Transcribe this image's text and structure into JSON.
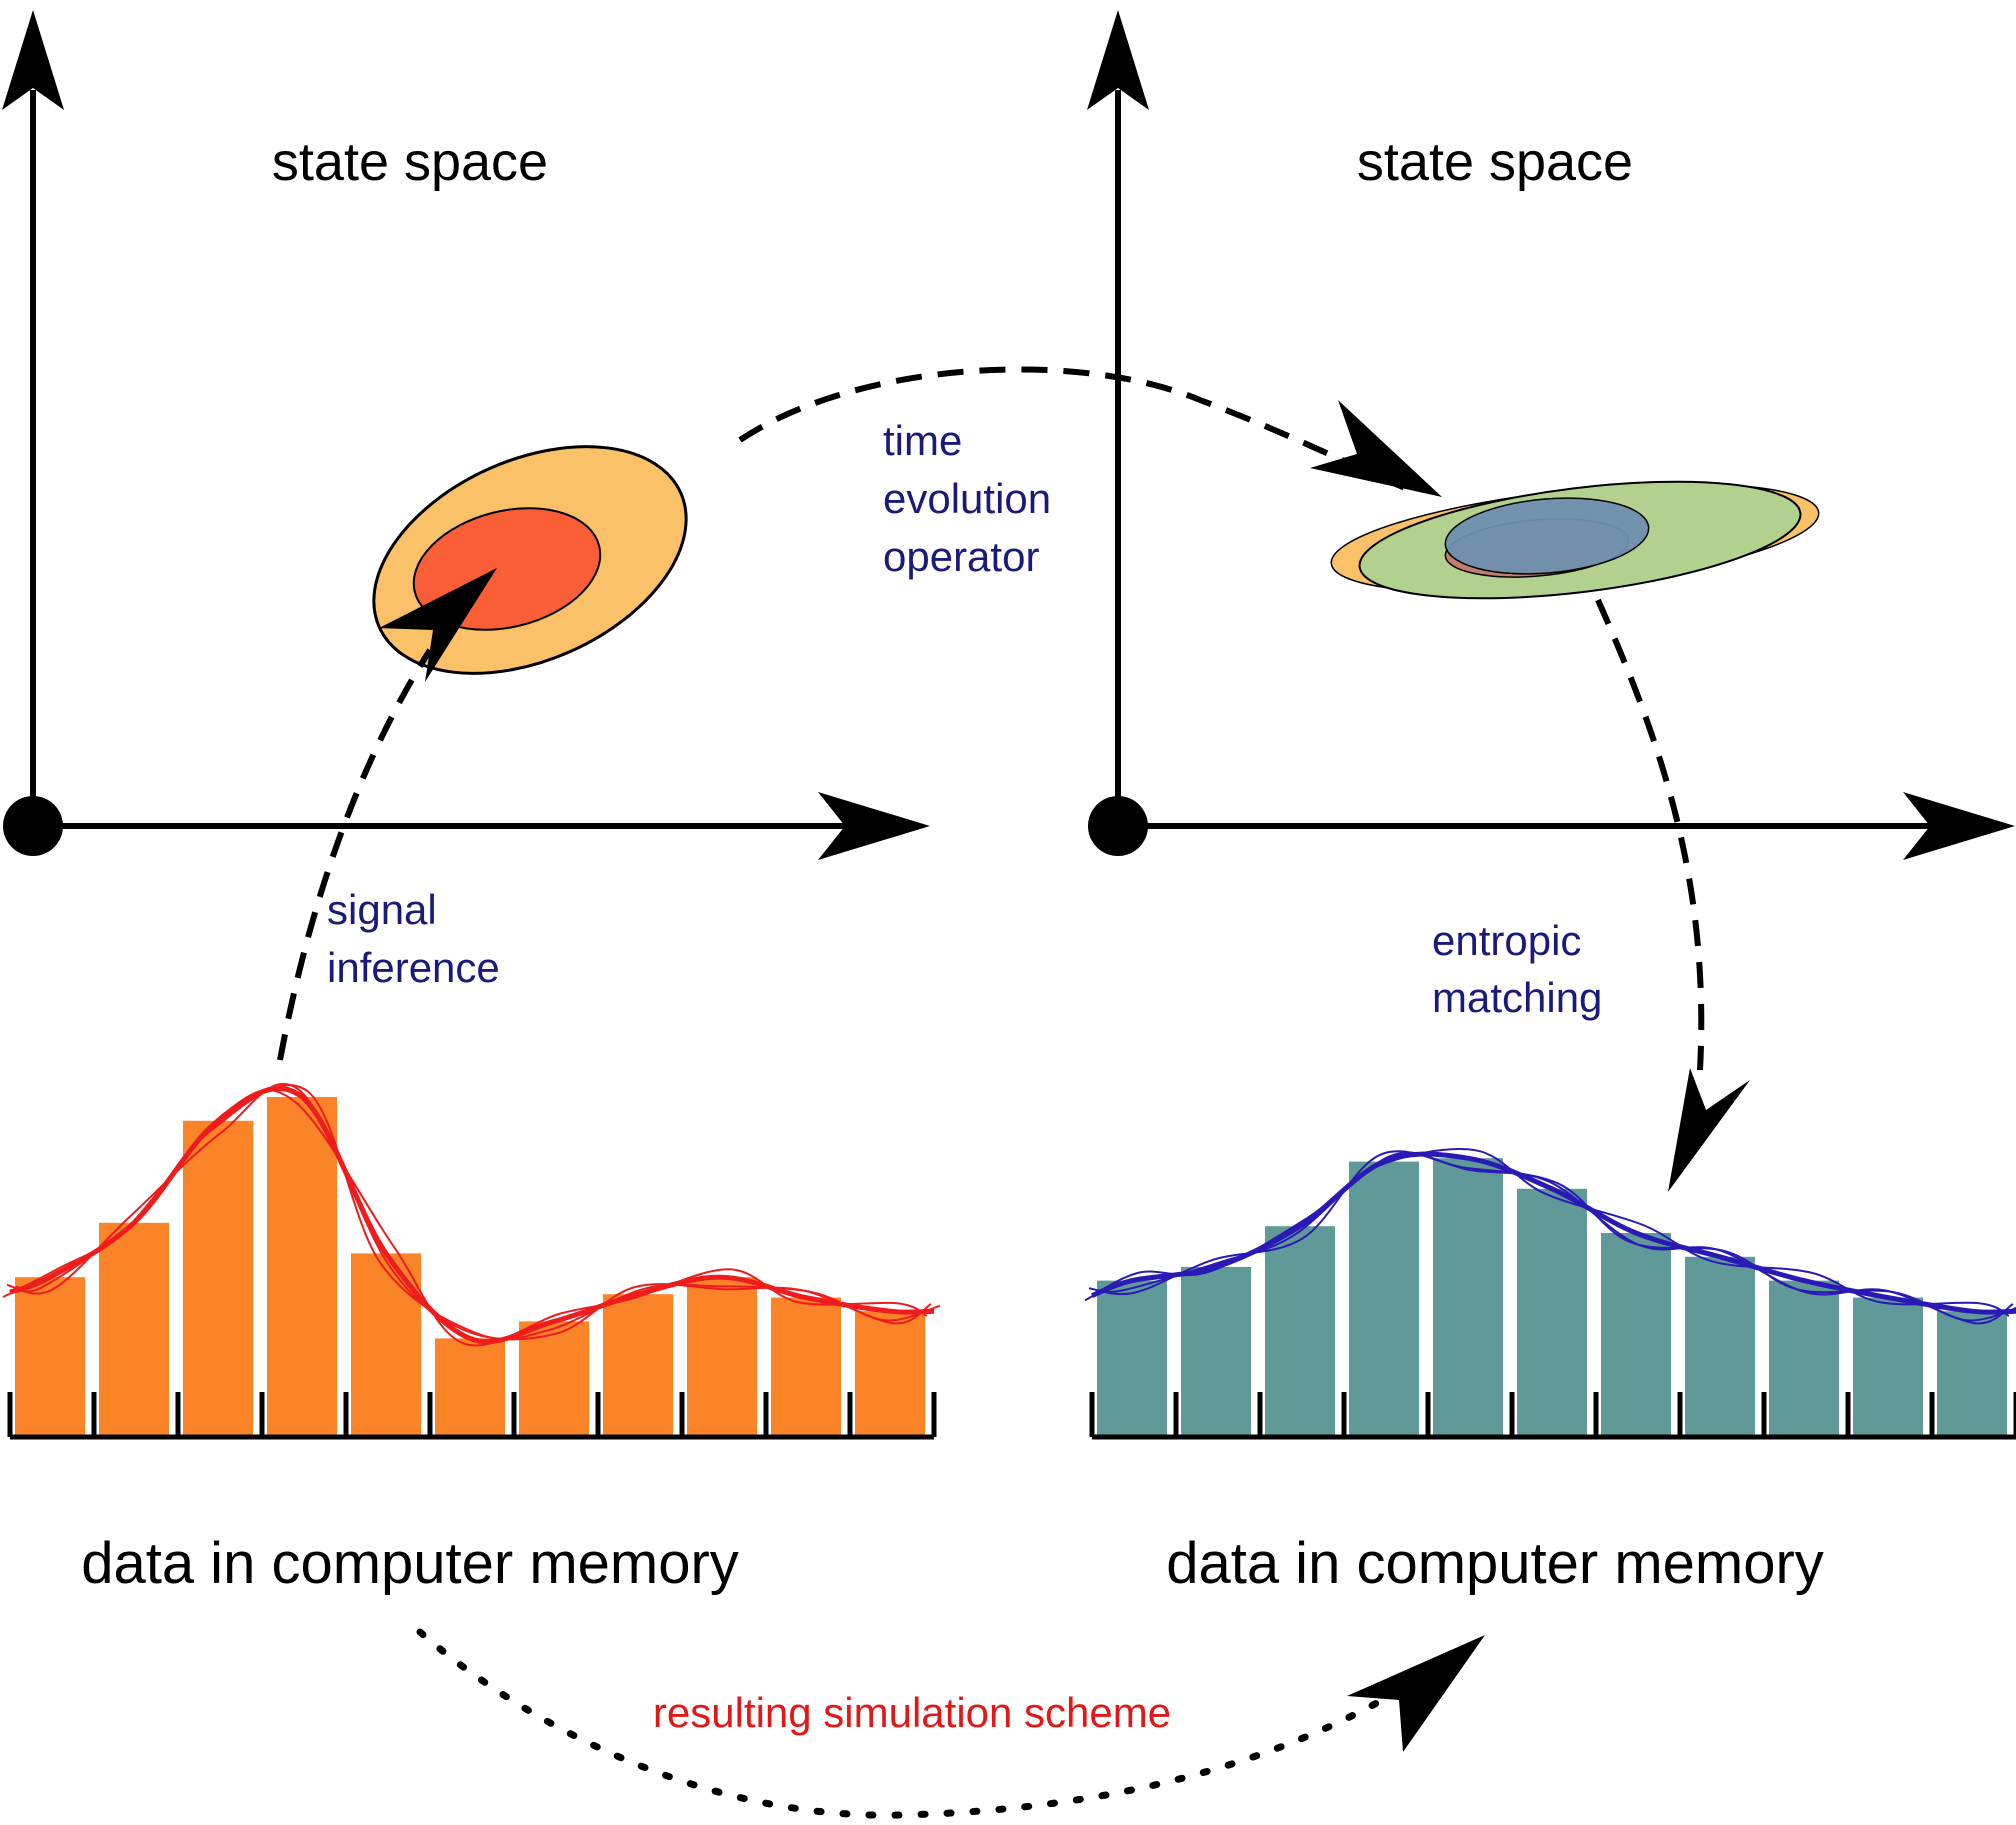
{
  "labels": {
    "state_space_left": "state space",
    "state_space_right": "state space",
    "time_evolution": [
      "time",
      "evolution",
      "operator"
    ],
    "signal_inference": [
      "signal",
      "inference"
    ],
    "entropic_matching": [
      "entropic",
      "matching"
    ],
    "data_left": "data in computer memory",
    "data_right": "data in computer memory",
    "simulation_scheme": "resulting simulation scheme"
  },
  "colors": {
    "axis": "#000000",
    "step_label": "#1a1a7a",
    "scheme_label": "#e01818",
    "left_bars": "#fb8428",
    "left_curves": "#ee1c1c",
    "right_bars": "#5f9a98",
    "right_curves": "#2a1ab5",
    "outer_ellipse": "#fbc169",
    "inner_ellipse": "#fa5e36",
    "green_ellipse": "#b2d08e",
    "cyan_ellipse": "#a9e6e4",
    "blue_ellipse": "#6e8fb0",
    "brown_ellipse": "#c2806a"
  },
  "left_histogram": [
    0.47,
    0.63,
    0.93,
    1.0,
    0.54,
    0.29,
    0.34,
    0.42,
    0.47,
    0.41,
    0.37
  ],
  "right_histogram": [
    0.46,
    0.5,
    0.62,
    0.81,
    0.82,
    0.73,
    0.6,
    0.53,
    0.46,
    0.41,
    0.37
  ]
}
